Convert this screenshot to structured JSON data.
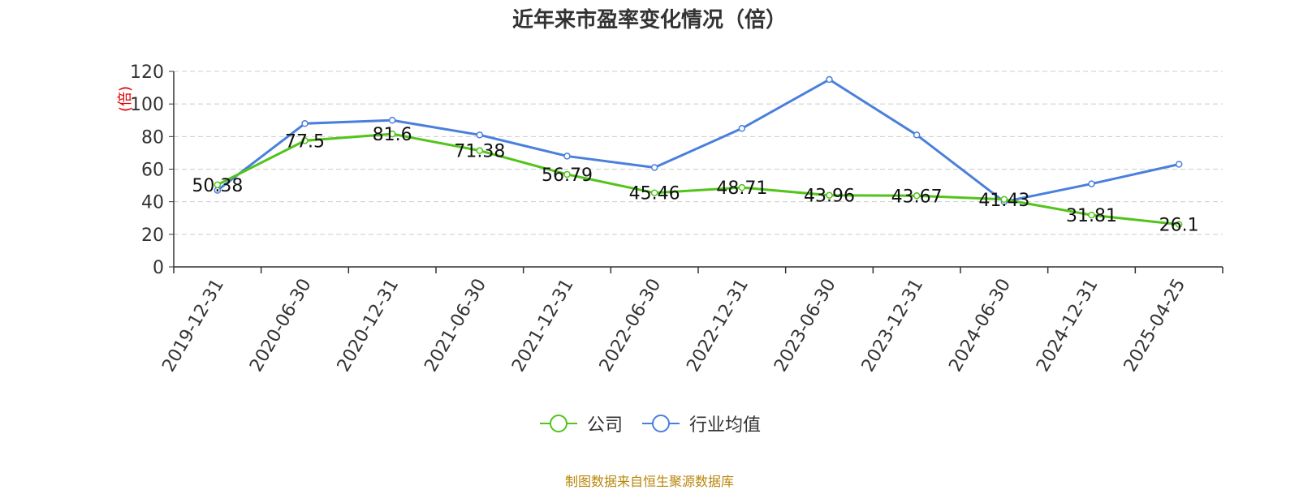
{
  "chart_data": {
    "type": "line",
    "title": "近年来市盈率变化情况（倍）",
    "ylabel": "(倍)",
    "xlabel": "",
    "ylim": [
      0,
      120
    ],
    "yticks": [
      0,
      20,
      40,
      60,
      80,
      100,
      120
    ],
    "grid": true,
    "legend_position": "bottom-center",
    "categories": [
      "2019-12-31",
      "2020-06-30",
      "2020-12-31",
      "2021-06-30",
      "2021-12-31",
      "2022-06-30",
      "2022-12-31",
      "2023-06-30",
      "2023-12-31",
      "2024-06-30",
      "2024-12-31",
      "2025-04-25"
    ],
    "series": [
      {
        "name": "公司",
        "color": "#52c41a",
        "values": [
          50.38,
          77.5,
          81.6,
          71.38,
          56.79,
          45.46,
          48.71,
          43.96,
          43.67,
          41.43,
          31.81,
          26.1
        ],
        "data_labels": [
          "50.38",
          "77.5",
          "81.6",
          "71.38",
          "56.79",
          "45.46",
          "48.71",
          "43.96",
          "43.67",
          "41.43",
          "31.81",
          "26.1"
        ]
      },
      {
        "name": "行业均值",
        "color": "#4a7fdc",
        "values": [
          47,
          88,
          90,
          81,
          68,
          61,
          85,
          115,
          81,
          40,
          51,
          63
        ]
      }
    ]
  },
  "source_note": "制图数据来自恒生聚源数据库"
}
